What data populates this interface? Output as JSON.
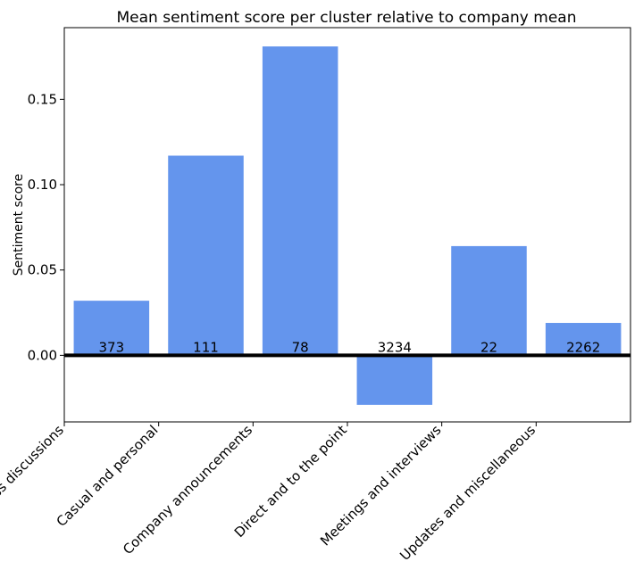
{
  "chart_data": {
    "type": "bar",
    "title": "Mean sentiment score per cluster relative to company mean",
    "xlabel": "",
    "ylabel": "Sentiment score",
    "categories": [
      "Business discussions",
      "Casual and personal",
      "Company announcements",
      "Direct and to the point",
      "Meetings and interviews",
      "Updates and miscellaneous"
    ],
    "values": [
      0.032,
      0.117,
      0.181,
      -0.029,
      0.064,
      0.019
    ],
    "bar_labels": [
      "373",
      "111",
      "78",
      "3234",
      "22",
      "2262"
    ],
    "ylim": [
      -0.039,
      0.192
    ],
    "yticks": [
      0.0,
      0.05,
      0.1,
      0.15
    ],
    "ytick_labels": [
      "0.00",
      "0.05",
      "0.10",
      "0.15"
    ],
    "bar_color": "#6495ED",
    "zero_line_color": "#000000",
    "grid": false,
    "legend": "none"
  }
}
